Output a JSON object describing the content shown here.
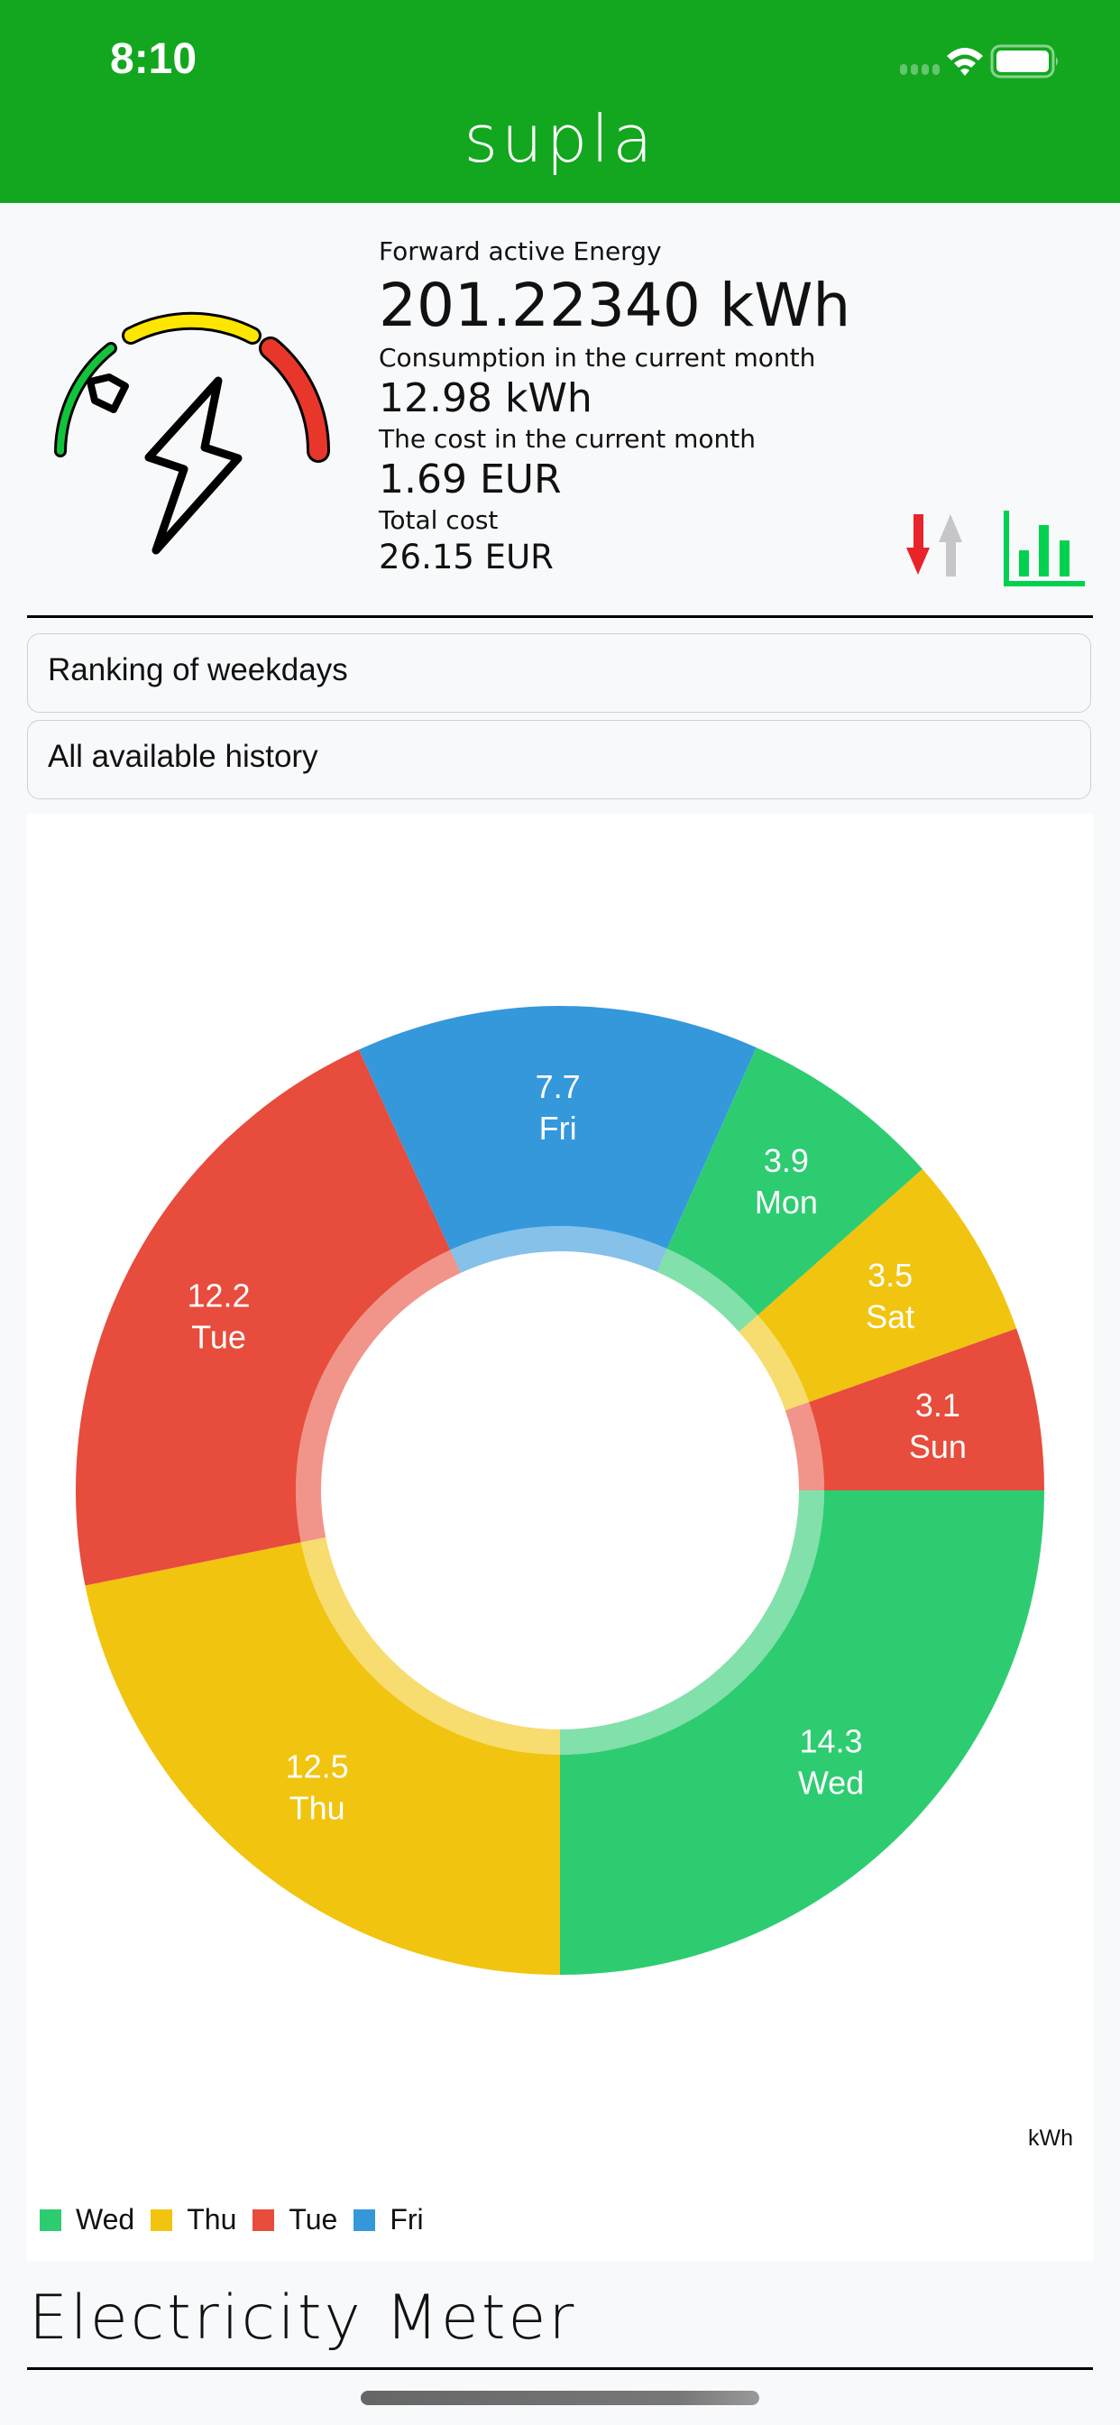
{
  "status_bar": {
    "time": "8:10",
    "icons": [
      "signal-icon",
      "wifi-icon",
      "battery-icon"
    ]
  },
  "header": {
    "title": "supla"
  },
  "meter": {
    "icon": "electricity-meter-icon",
    "forward_label": "Forward active Energy",
    "forward_value": "201.22340 kWh",
    "month_consumption_label": "Consumption in the current month",
    "month_consumption_value": "12.98 kWh",
    "month_cost_label": "The cost in the current month",
    "month_cost_value": "1.69 EUR",
    "total_cost_label": "Total cost",
    "total_cost_value": "26.15 EUR",
    "direction_icon": "import-export-arrows-icon",
    "chart_button_icon": "bar-chart-icon"
  },
  "selectors": {
    "chart_type": "Ranking of weekdays",
    "date_range": "All available history"
  },
  "chart": {
    "unit": "kWh",
    "legend": [
      {
        "label": "Wed",
        "color": "#2ecc71"
      },
      {
        "label": "Thu",
        "color": "#f1c40f"
      },
      {
        "label": "Tue",
        "color": "#e74c3c"
      },
      {
        "label": "Fri",
        "color": "#3498db"
      }
    ]
  },
  "chart_data": {
    "type": "pie",
    "subtype": "donut",
    "title": "Ranking of weekdays",
    "unit": "kWh",
    "categories": [
      "Wed",
      "Thu",
      "Tue",
      "Fri",
      "Mon",
      "Sat",
      "Sun"
    ],
    "values": [
      14.3,
      12.5,
      12.2,
      7.7,
      3.9,
      3.5,
      3.1
    ],
    "colors": [
      "#2ecc71",
      "#f1c40f",
      "#e74c3c",
      "#3498db",
      "#2ecc71",
      "#f1c40f",
      "#e74c3c"
    ],
    "labels": [
      "14.3\nWed",
      "12.5\nThu",
      "12.2\nTue",
      "7.7\nFri",
      "3.9\nMon",
      "3.5\nSat",
      "3.1\nSun"
    ],
    "legend": [
      "Wed",
      "Thu",
      "Tue",
      "Fri"
    ],
    "legend_position": "bottom-left",
    "start_angle_deg": 0,
    "direction": "clockwise"
  },
  "footer": {
    "title": "Electricity Meter"
  },
  "colors": {
    "brand_green": "#12a71e",
    "background": "#f8f9fb",
    "accent_red": "#e8232a",
    "accent_gray": "#c6c6c8",
    "chart_icon_green": "#00d14f"
  }
}
